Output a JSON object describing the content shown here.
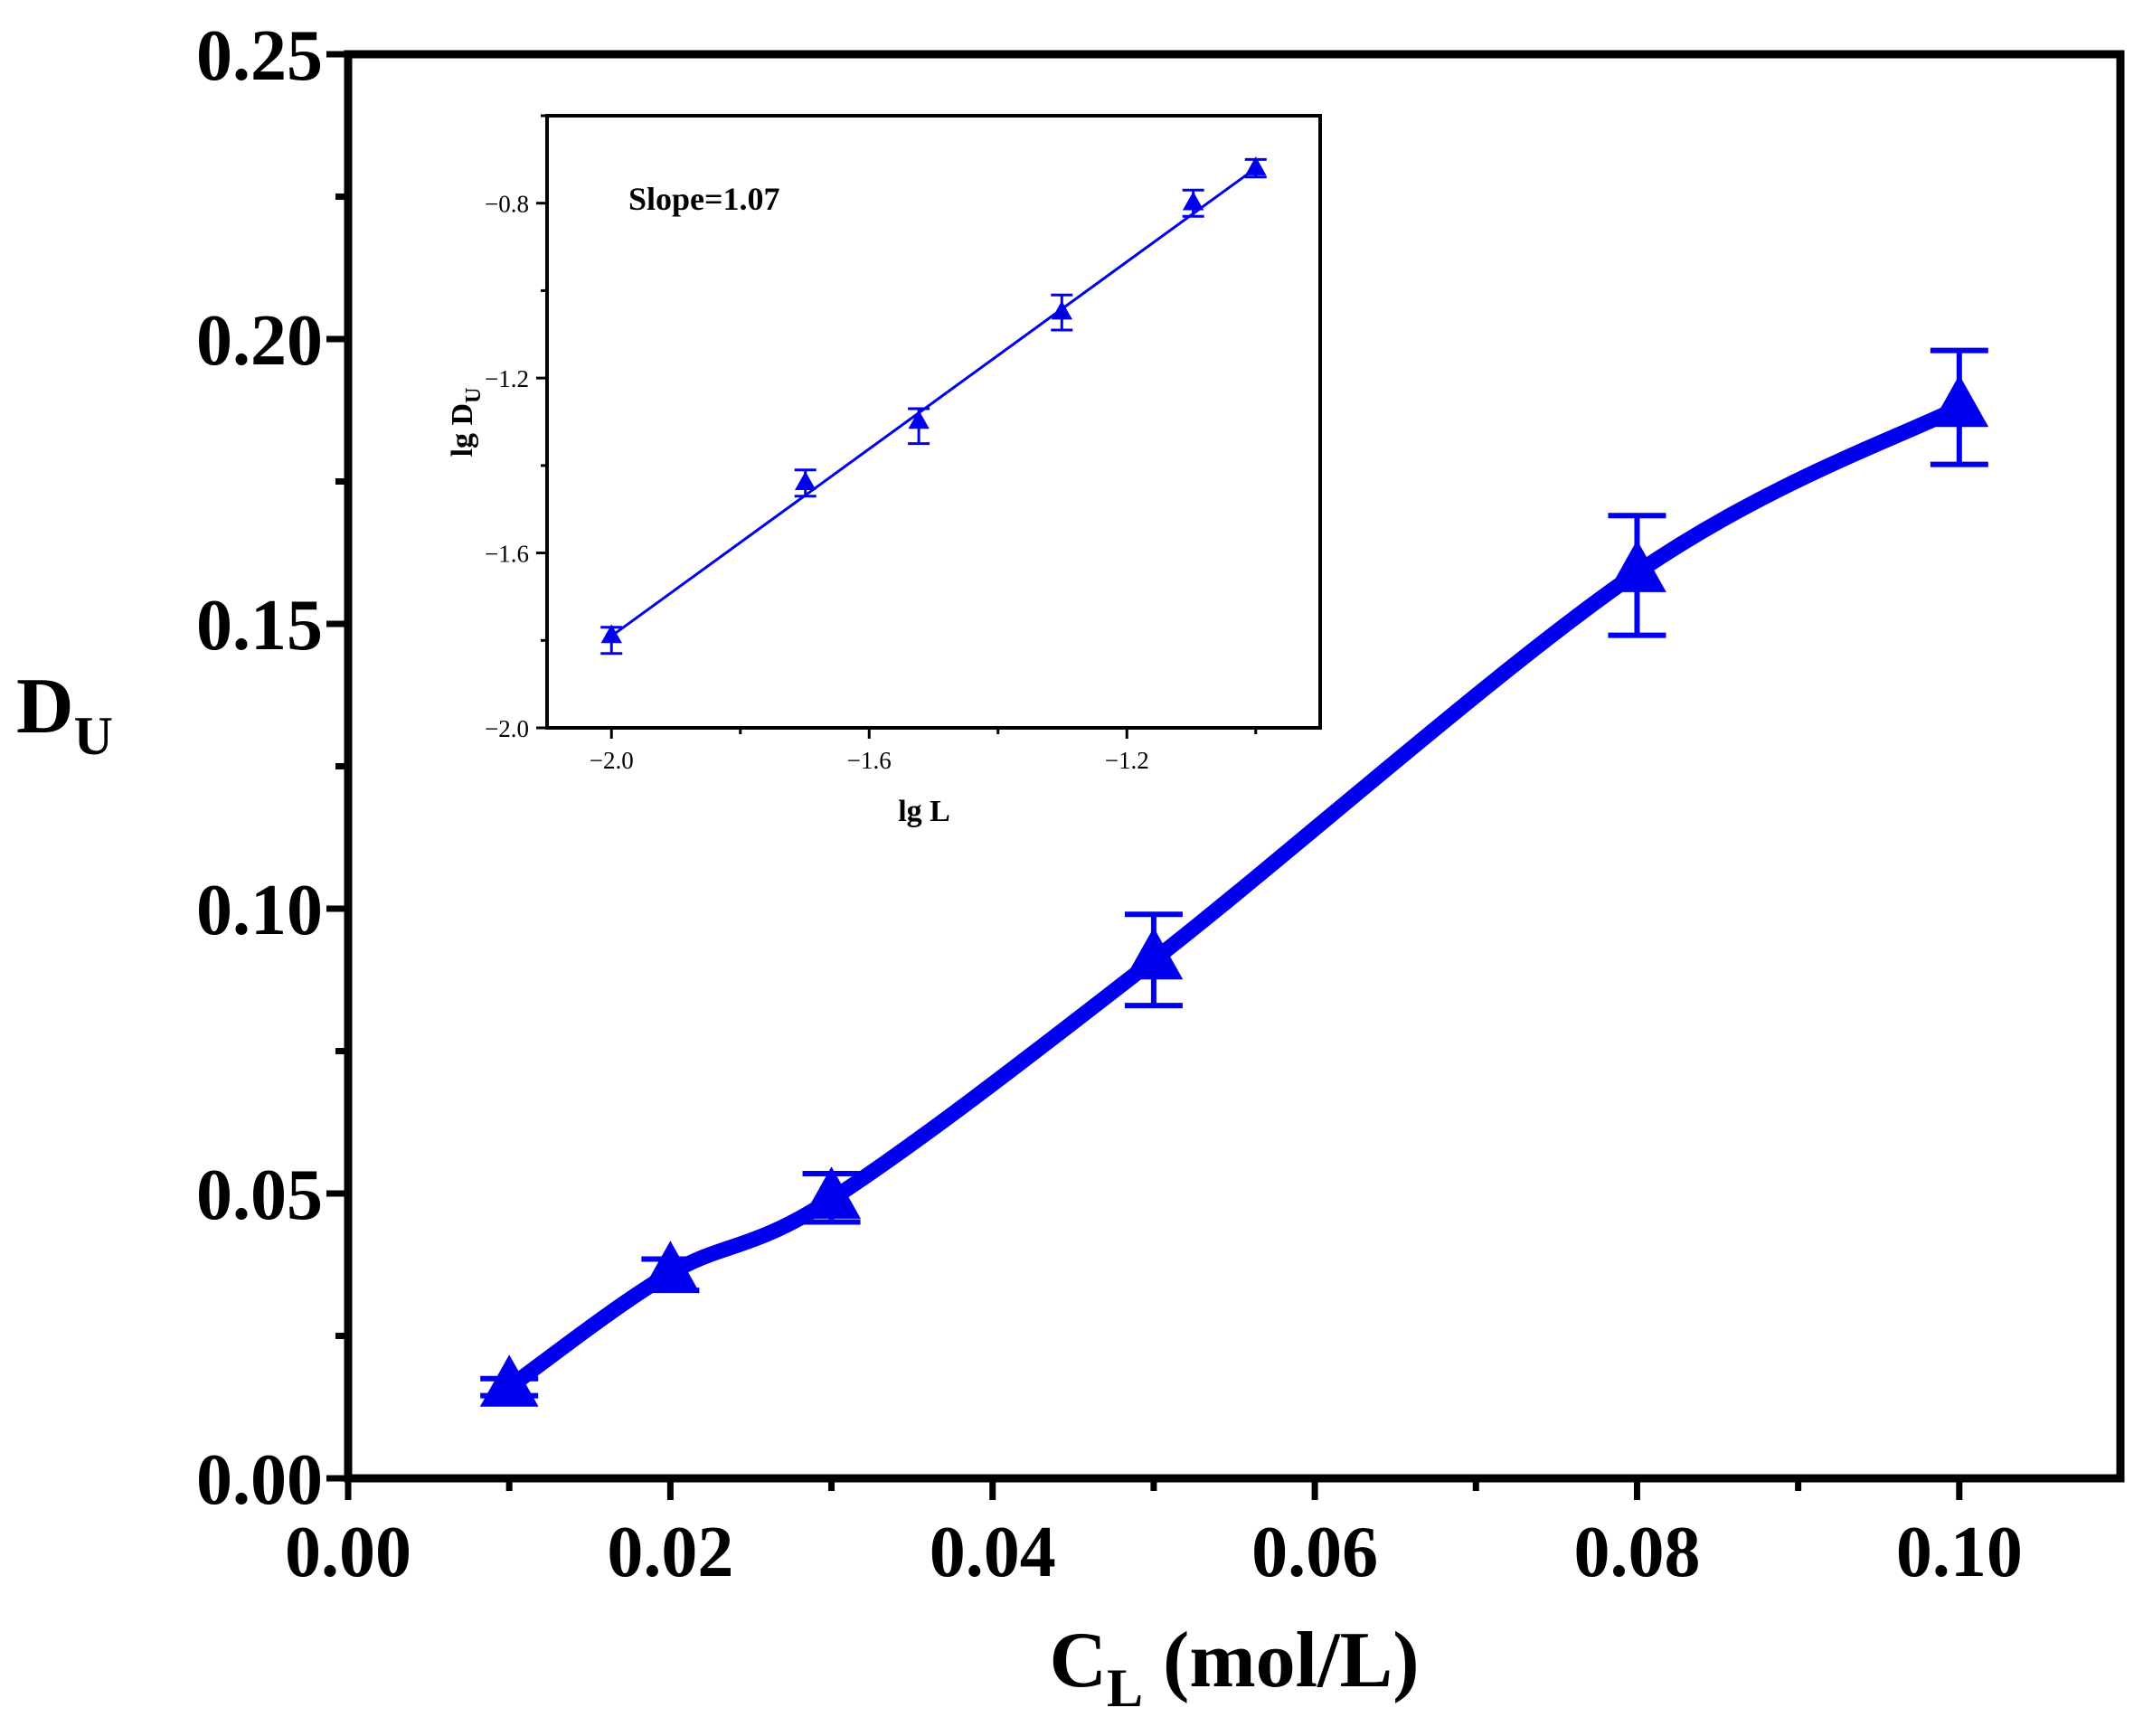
{
  "colors": {
    "series": "#0000ee",
    "axis": "#000000",
    "background": "#ffffff"
  },
  "chart_data": [
    {
      "id": "main",
      "type": "line",
      "title": "",
      "xlabel": {
        "main": "C",
        "sub": "L",
        "unit": "(mol/L)"
      },
      "ylabel": {
        "main": "D",
        "sub": "U"
      },
      "xlim": [
        0,
        0.11
      ],
      "ylim": [
        0,
        0.25
      ],
      "x_ticks": [
        0.0,
        0.02,
        0.04,
        0.06,
        0.08,
        0.1
      ],
      "x_tick_labels": [
        "0.00",
        "0.02",
        "0.04",
        "0.06",
        "0.08",
        "0.10"
      ],
      "y_ticks": [
        0.0,
        0.05,
        0.1,
        0.15,
        0.2,
        0.25
      ],
      "y_tick_labels": [
        "0.00",
        "0.05",
        "0.10",
        "0.15",
        "0.20",
        "0.25"
      ],
      "grid": false,
      "series": [
        {
          "name": "D_U",
          "marker": "triangle",
          "smooth": true,
          "x": [
            0.01,
            0.02,
            0.03,
            0.05,
            0.08,
            0.1
          ],
          "y": [
            0.016,
            0.036,
            0.049,
            0.091,
            0.159,
            0.188
          ],
          "err_low": [
            0.0145,
            0.033,
            0.045,
            0.083,
            0.148,
            0.178
          ],
          "err_high": [
            0.0175,
            0.0385,
            0.0535,
            0.099,
            0.169,
            0.198
          ]
        }
      ]
    },
    {
      "id": "inset",
      "type": "scatter",
      "title": "",
      "xlabel": "lg L",
      "ylabel": {
        "main": "lg D",
        "sub": "U"
      },
      "xlim": [
        -2.1,
        -0.9
      ],
      "ylim": [
        -2.0,
        -0.6
      ],
      "x_ticks": [
        -2.0,
        -1.6,
        -1.2
      ],
      "x_tick_labels": [
        "−2.0",
        "−1.6",
        "−1.2"
      ],
      "y_ticks": [
        -2.0,
        -1.6,
        -1.2,
        -0.8
      ],
      "y_tick_labels": [
        "−2.0",
        "−1.6",
        "−1.2",
        "−0.8"
      ],
      "annotation": "Slope=1.07",
      "fit": {
        "slope": 1.07,
        "x_range": [
          -2.0,
          -1.0
        ]
      },
      "series": [
        {
          "name": "lg D_U",
          "marker": "triangle",
          "x": [
            -2.0,
            -1.699,
            -1.523,
            -1.301,
            -1.097,
            -1.0
          ],
          "y": [
            -1.79,
            -1.44,
            -1.3,
            -1.05,
            -0.8,
            -0.72
          ],
          "err_low": [
            -1.83,
            -1.47,
            -1.35,
            -1.09,
            -0.83,
            -0.74
          ],
          "err_high": [
            -1.77,
            -1.41,
            -1.27,
            -1.01,
            -0.77,
            -0.7
          ]
        }
      ]
    }
  ]
}
